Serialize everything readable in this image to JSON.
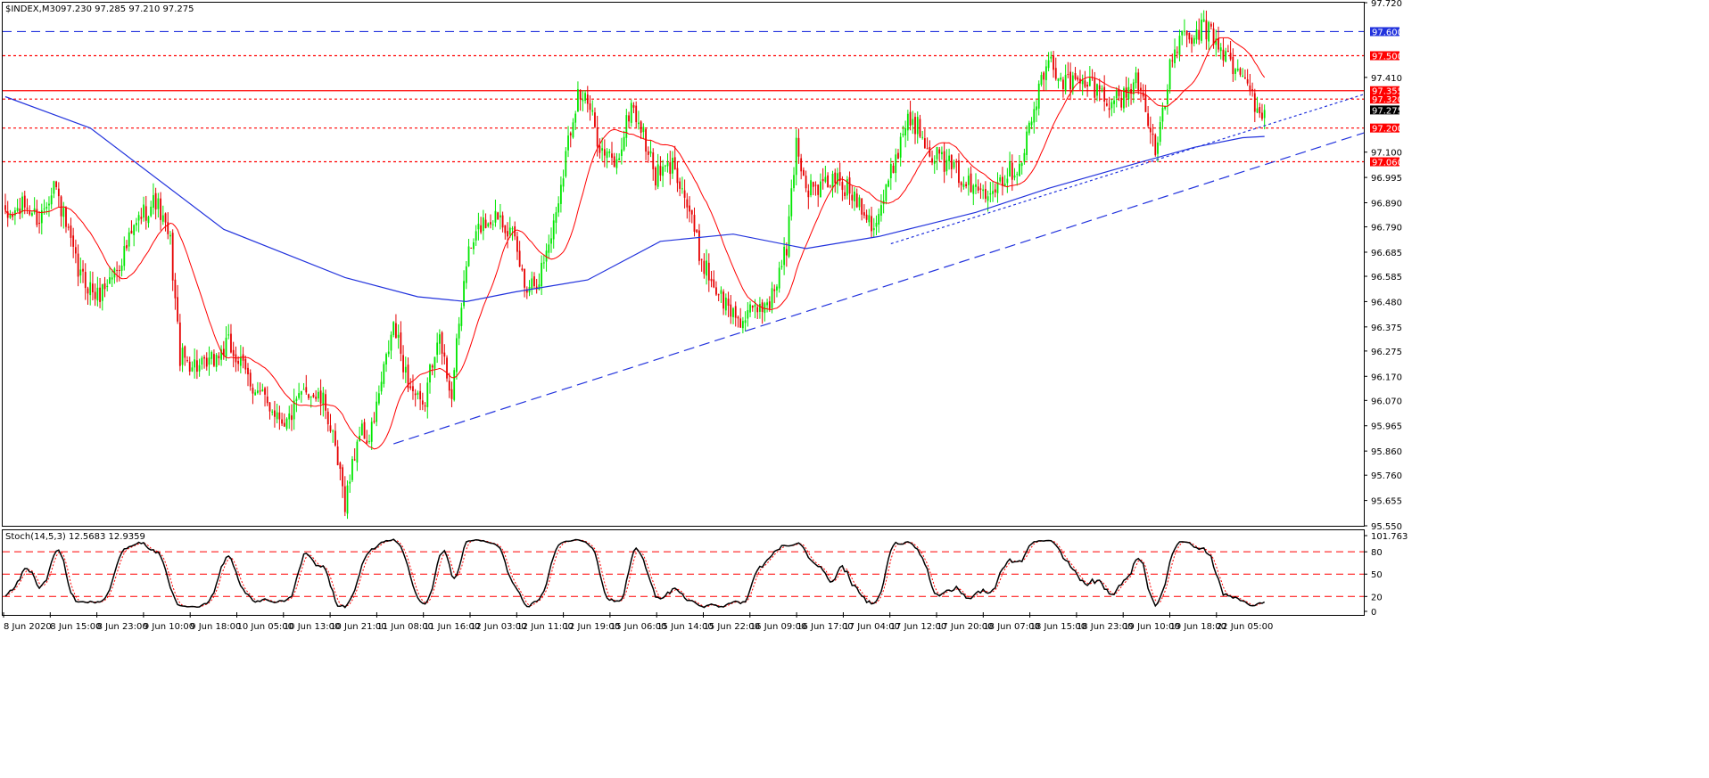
{
  "header": {
    "symbol": "$INDEX,M30",
    "ohlc": "97.230 97.285 97.210 97.275"
  },
  "stoch": {
    "label": "Stoch(14,5,3) 12.5683 12.9359"
  },
  "colors": {
    "bull": "#00e600",
    "bear": "#e60000",
    "ma_fast": "#ff0000",
    "ma_slow": "#2233dd",
    "trend": "#2233dd",
    "level": "#ff0000",
    "stoch_main": "#000000",
    "stoch_signal": "#ff0000"
  },
  "chart_data": [
    {
      "type": "candlestick",
      "title": "$INDEX,M30",
      "y_ticks": [
        "97.720",
        "97.600",
        "97.500",
        "97.410",
        "97.355",
        "97.320",
        "97.275",
        "97.200",
        "97.100",
        "97.060",
        "96.995",
        "96.890",
        "96.790",
        "96.685",
        "96.585",
        "96.480",
        "96.375",
        "96.275",
        "96.170",
        "96.070",
        "95.965",
        "95.860",
        "95.760",
        "95.655",
        "95.550"
      ],
      "ylim": [
        95.55,
        97.72
      ],
      "x_ticks": [
        "8 Jun 2020",
        "8 Jun 15:00",
        "8 Jun 23:00",
        "9 Jun 10:00",
        "9 Jun 18:00",
        "10 Jun 05:00",
        "10 Jun 13:00",
        "10 Jun 21:00",
        "11 Jun 08:00",
        "11 Jun 16:00",
        "12 Jun 03:00",
        "12 Jun 11:00",
        "12 Jun 19:00",
        "15 Jun 06:00",
        "15 Jun 14:00",
        "15 Jun 22:00",
        "16 Jun 09:00",
        "16 Jun 17:00",
        "17 Jun 04:00",
        "17 Jun 12:00",
        "17 Jun 20:00",
        "18 Jun 07:00",
        "18 Jun 15:00",
        "18 Jun 23:00",
        "19 Jun 10:00",
        "19 Jun 18:00",
        "22 Jun 05:00"
      ],
      "anchors": [
        [
          0,
          96.82
        ],
        [
          8,
          96.88
        ],
        [
          14,
          96.82
        ],
        [
          20,
          96.98
        ],
        [
          30,
          96.6
        ],
        [
          38,
          96.5
        ],
        [
          46,
          96.62
        ],
        [
          56,
          96.84
        ],
        [
          62,
          96.9
        ],
        [
          68,
          96.72
        ],
        [
          72,
          96.25
        ],
        [
          82,
          96.2
        ],
        [
          92,
          96.3
        ],
        [
          104,
          96.1
        ],
        [
          116,
          95.98
        ],
        [
          124,
          96.12
        ],
        [
          132,
          96.05
        ],
        [
          140,
          95.65
        ],
        [
          146,
          95.95
        ],
        [
          150,
          95.9
        ],
        [
          160,
          96.38
        ],
        [
          166,
          96.15
        ],
        [
          172,
          96.02
        ],
        [
          178,
          96.35
        ],
        [
          184,
          96.1
        ],
        [
          190,
          96.65
        ],
        [
          196,
          96.8
        ],
        [
          204,
          96.85
        ],
        [
          210,
          96.72
        ],
        [
          214,
          96.55
        ],
        [
          220,
          96.58
        ],
        [
          226,
          96.8
        ],
        [
          232,
          97.15
        ],
        [
          236,
          97.35
        ],
        [
          240,
          97.3
        ],
        [
          246,
          97.1
        ],
        [
          252,
          97.05
        ],
        [
          258,
          97.3
        ],
        [
          262,
          97.2
        ],
        [
          268,
          97.0
        ],
        [
          276,
          97.05
        ],
        [
          282,
          96.85
        ],
        [
          286,
          96.68
        ],
        [
          292,
          96.55
        ],
        [
          298,
          96.45
        ],
        [
          304,
          96.4
        ],
        [
          310,
          96.45
        ],
        [
          316,
          96.5
        ],
        [
          322,
          96.7
        ],
        [
          326,
          97.15
        ],
        [
          330,
          96.95
        ],
        [
          336,
          96.95
        ],
        [
          342,
          96.99
        ],
        [
          352,
          96.9
        ],
        [
          358,
          96.8
        ],
        [
          362,
          96.9
        ],
        [
          366,
          97.05
        ],
        [
          372,
          97.25
        ],
        [
          378,
          97.18
        ],
        [
          382,
          97.1
        ],
        [
          388,
          97.05
        ],
        [
          394,
          97.0
        ],
        [
          398,
          96.95
        ],
        [
          404,
          96.95
        ],
        [
          410,
          96.99
        ],
        [
          418,
          97.05
        ],
        [
          422,
          97.2
        ],
        [
          426,
          97.35
        ],
        [
          430,
          97.48
        ],
        [
          436,
          97.4
        ],
        [
          442,
          97.38
        ],
        [
          448,
          97.38
        ],
        [
          454,
          97.32
        ],
        [
          460,
          97.32
        ],
        [
          466,
          97.4
        ],
        [
          470,
          97.3
        ],
        [
          474,
          97.1
        ],
        [
          476,
          97.18
        ],
        [
          480,
          97.45
        ],
        [
          484,
          97.58
        ],
        [
          488,
          97.55
        ],
        [
          494,
          97.62
        ],
        [
          500,
          97.55
        ],
        [
          506,
          97.45
        ],
        [
          512,
          97.38
        ],
        [
          516,
          97.28
        ],
        [
          519,
          97.25
        ]
      ],
      "last_price": 97.275,
      "ma_fast_period": 21,
      "ma_slow": [
        [
          0,
          97.33
        ],
        [
          35,
          97.2
        ],
        [
          90,
          96.78
        ],
        [
          140,
          96.58
        ],
        [
          170,
          96.5
        ],
        [
          190,
          96.48
        ],
        [
          210,
          96.52
        ],
        [
          240,
          96.57
        ],
        [
          270,
          96.73
        ],
        [
          300,
          96.76
        ],
        [
          330,
          96.7
        ],
        [
          360,
          96.75
        ],
        [
          380,
          96.8
        ],
        [
          400,
          96.85
        ],
        [
          430,
          96.95
        ],
        [
          465,
          97.05
        ],
        [
          490,
          97.12
        ],
        [
          510,
          97.16
        ],
        [
          519,
          97.165
        ]
      ],
      "h_levels": [
        {
          "price": 97.6,
          "label": "97.600",
          "style": "dashed",
          "color": "#2233dd"
        },
        {
          "price": 97.5,
          "label": "97.500",
          "style": "dotted",
          "color": "#ff0000"
        },
        {
          "price": 97.355,
          "label": "97.355",
          "style": "solid",
          "color": "#ff0000"
        },
        {
          "price": 97.32,
          "label": "97.320",
          "style": "dotted",
          "color": "#ff0000"
        },
        {
          "price": 97.2,
          "label": "97.200",
          "style": "dotted",
          "color": "#ff0000"
        },
        {
          "price": 97.06,
          "label": "97.060",
          "style": "dotted",
          "color": "#ff0000"
        }
      ],
      "trendlines": [
        {
          "from": [
            160,
            95.89
          ],
          "to": [
            560,
            97.18
          ],
          "style": "dashed"
        },
        {
          "from": [
            365,
            96.72
          ],
          "to": [
            560,
            97.34
          ],
          "style": "dotted"
        }
      ]
    },
    {
      "type": "line",
      "title": "Stoch(14,5,3) 12.5683 12.9359",
      "y_ticks": [
        "101.763",
        "80",
        "50",
        "20",
        "0"
      ],
      "ylim": [
        0,
        101.763
      ],
      "levels": [
        80,
        50,
        20
      ],
      "main_value": 12.5683,
      "signal_value": 12.9359
    }
  ]
}
